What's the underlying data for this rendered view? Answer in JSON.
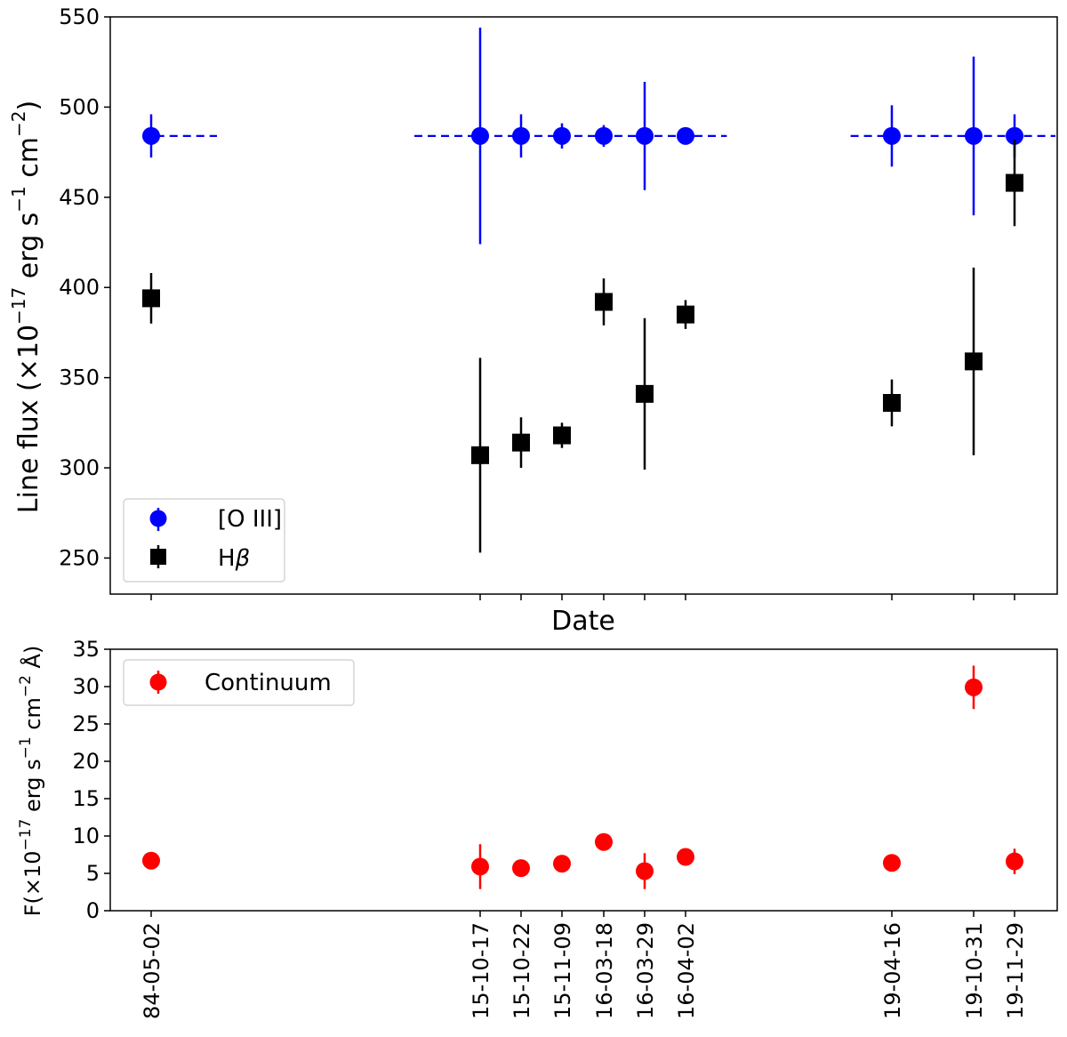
{
  "chart_data": [
    {
      "type": "scatter",
      "panel": "top",
      "title": "",
      "xlabel": "Date",
      "ylabel_parts": [
        "Line flux (×10",
        "−17",
        " erg s",
        "−1",
        " cm",
        "−2",
        ")"
      ],
      "ylim": [
        230,
        550
      ],
      "yticks": [
        250,
        300,
        350,
        400,
        450,
        500,
        550
      ],
      "grid": false,
      "legend": "lower-left",
      "series": [
        {
          "name": "[O III]",
          "marker": "circle",
          "color": "#0000ff",
          "x_index": [
            0,
            1,
            2,
            3,
            4,
            5,
            6,
            7,
            8,
            9
          ],
          "values": [
            484,
            484,
            484,
            484,
            484,
            484,
            484,
            484,
            484,
            484
          ],
          "errors": [
            12,
            60,
            12,
            7,
            6,
            30,
            1,
            17,
            44,
            12
          ]
        },
        {
          "name": "Hβ",
          "name_parts": [
            "H",
            "β"
          ],
          "marker": "square",
          "color": "#000000",
          "x_index": [
            0,
            1,
            2,
            3,
            4,
            5,
            6,
            7,
            8,
            9
          ],
          "values": [
            394,
            307,
            314,
            318,
            392,
            341,
            385,
            336,
            359,
            458
          ],
          "errors": [
            14,
            54,
            14,
            7,
            13,
            42,
            8,
            13,
            52,
            24
          ]
        }
      ],
      "reference_segments": [
        {
          "x_from": -0.2,
          "x_to": 0.2,
          "y": 484
        },
        {
          "x_from": 0.8,
          "x_to": 6.2,
          "y": 484
        },
        {
          "x_from": 6.8,
          "x_to": 9.4,
          "y": 484
        }
      ]
    },
    {
      "type": "scatter",
      "panel": "bottom",
      "title": "",
      "xlabel": "",
      "ylabel_parts": [
        "F(×10",
        "−17",
        " erg s",
        "−1",
        " cm",
        "−2",
        " Å)"
      ],
      "ylim": [
        0,
        35
      ],
      "yticks": [
        0,
        5,
        10,
        15,
        20,
        25,
        30,
        35
      ],
      "grid": false,
      "legend": "top-left",
      "series": [
        {
          "name": "Continuum",
          "marker": "circle",
          "color": "#ff0000",
          "x_index": [
            0,
            1,
            2,
            3,
            4,
            5,
            6,
            7,
            8,
            9
          ],
          "values": [
            6.7,
            5.9,
            5.7,
            6.3,
            9.2,
            5.3,
            7.2,
            6.4,
            29.9,
            6.6
          ],
          "errors": [
            0.3,
            3.0,
            0.4,
            0.3,
            0.3,
            2.4,
            0.3,
            0.3,
            2.9,
            1.7
          ]
        }
      ]
    }
  ],
  "x_categories": [
    "84-05-02",
    "15-10-17",
    "15-10-22",
    "15-11-09",
    "16-03-18",
    "16-03-29",
    "16-04-02",
    "19-04-16",
    "19-10-31",
    "19-11-29"
  ]
}
